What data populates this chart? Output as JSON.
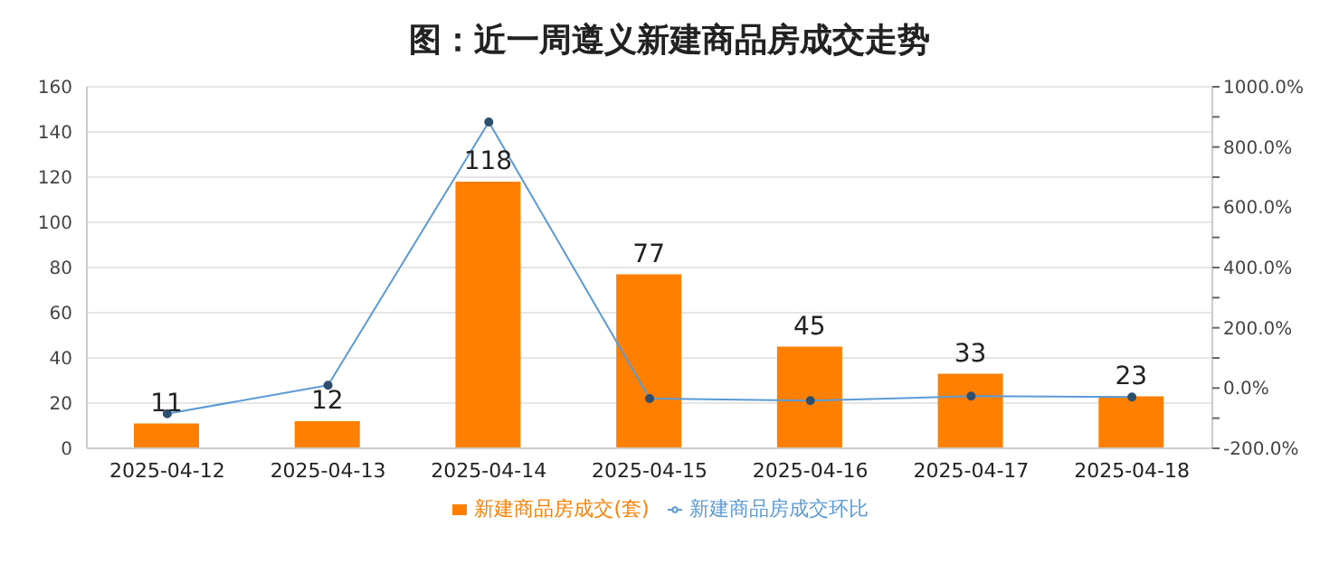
{
  "chart_data": {
    "type": "bar",
    "title": "图：近一周遵义新建商品房成交走势",
    "categories": [
      "2025-04-12",
      "2025-04-13",
      "2025-04-14",
      "2025-04-15",
      "2025-04-16",
      "2025-04-17",
      "2025-04-18"
    ],
    "series": [
      {
        "name": "新建商品房成交(套)",
        "color": "#ff8000",
        "values": [
          11,
          12,
          118,
          77,
          45,
          33,
          23
        ],
        "value_labels": [
          "11",
          "12",
          "118",
          "77",
          "45",
          "33",
          "23"
        ]
      },
      {
        "name": "新建商品房成交环比",
        "type": "line",
        "axis": "y2",
        "color": "#5b9bd5",
        "values": [
          -85,
          9,
          883,
          -35,
          -42,
          -27,
          -30
        ]
      }
    ],
    "ylim": [
      0,
      160
    ],
    "yticks": [
      0,
      20,
      40,
      60,
      80,
      100,
      120,
      140,
      160
    ],
    "y2lim": [
      -200,
      1000
    ],
    "y2ticks": [
      {
        "value": -200,
        "label": "-200.0%"
      },
      {
        "value": -100,
        "label": null
      },
      {
        "value": 0,
        "label": "0.0%"
      },
      {
        "value": 100,
        "label": null
      },
      {
        "value": 200,
        "label": "200.0%"
      },
      {
        "value": 300,
        "label": null
      },
      {
        "value": 400,
        "label": "400.0%"
      },
      {
        "value": 500,
        "label": null
      },
      {
        "value": 600,
        "label": "600.0%"
      },
      {
        "value": 700,
        "label": null
      },
      {
        "value": 800,
        "label": "800.0%"
      },
      {
        "value": 900,
        "label": null
      },
      {
        "value": 1000,
        "label": "1000.0%"
      }
    ],
    "grid": "y",
    "legend": "bottom",
    "marker": "circle"
  }
}
